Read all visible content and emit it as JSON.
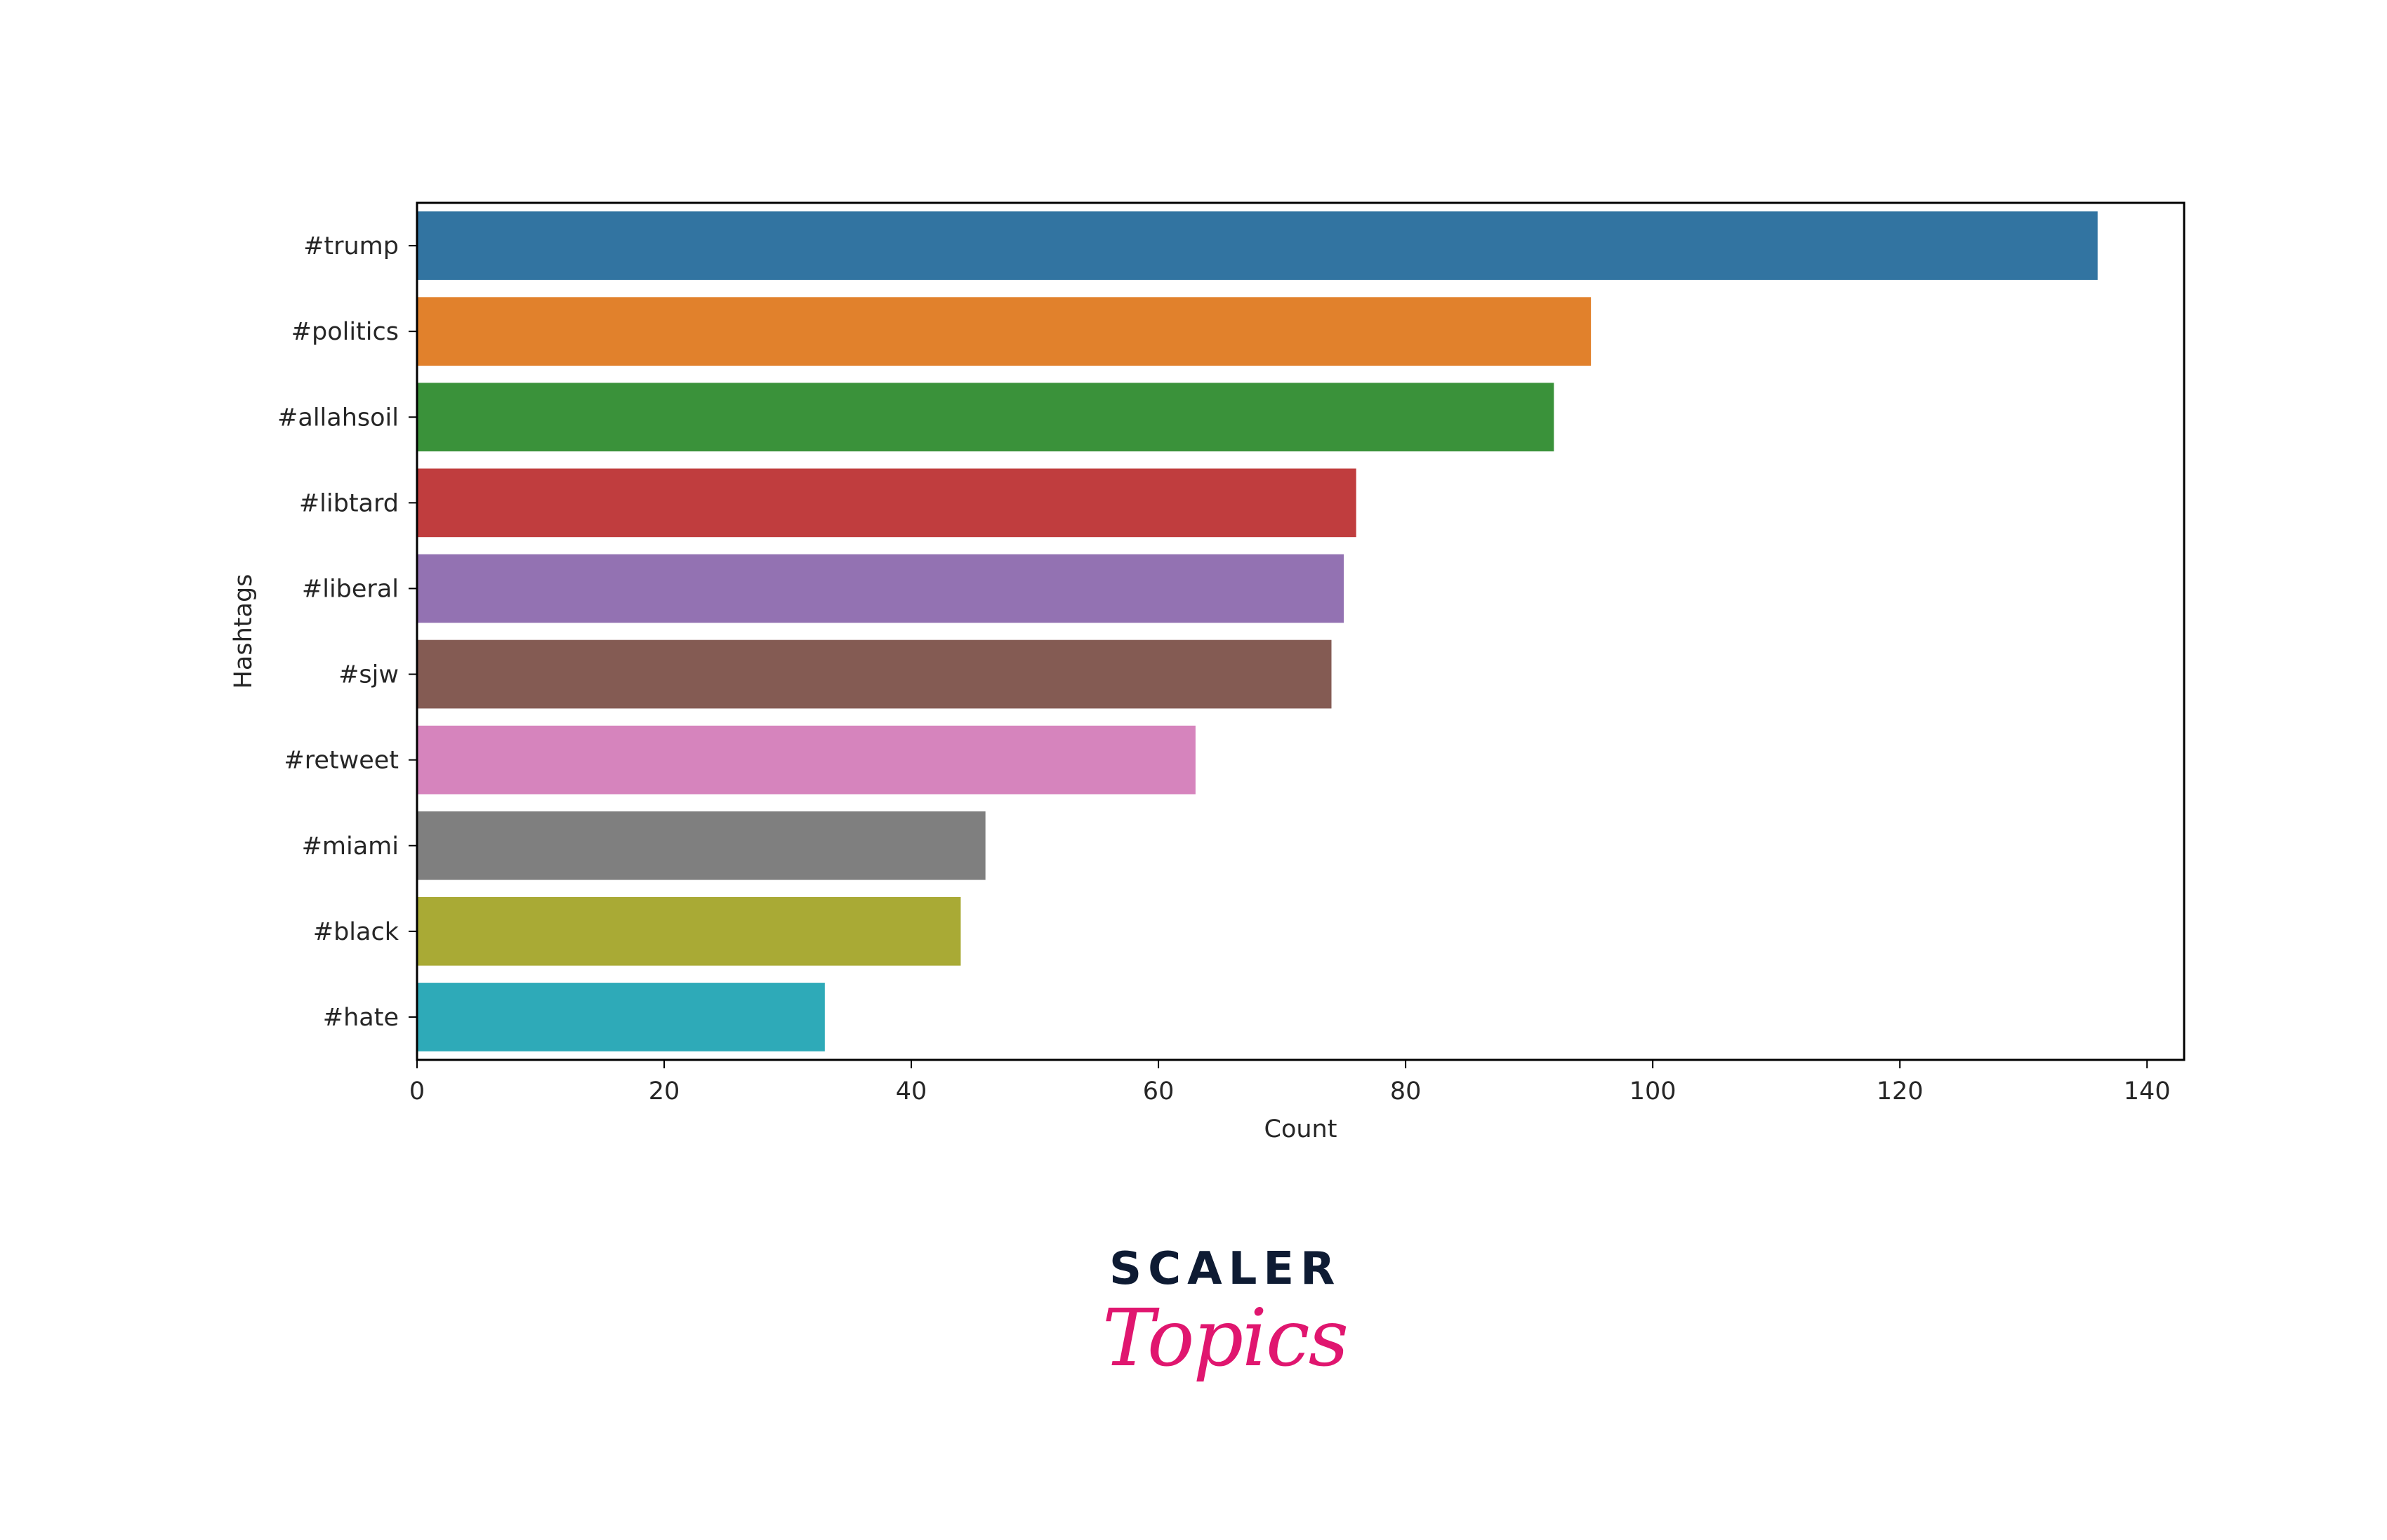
{
  "chart_data": {
    "type": "bar",
    "orientation": "horizontal",
    "categories": [
      "#trump",
      "#politics",
      "#allahsoil",
      "#libtard",
      "#liberal",
      "#sjw",
      "#retweet",
      "#miami",
      "#black",
      "#hate"
    ],
    "values": [
      136,
      95,
      92,
      76,
      75,
      74,
      63,
      46,
      44,
      33
    ],
    "colors": [
      "#3274a1",
      "#e1812c",
      "#3a923a",
      "#c03d3e",
      "#9372b2",
      "#845b53",
      "#d684bd",
      "#7f7f7f",
      "#a9aa35",
      "#2eaab8"
    ],
    "xlabel": "Count",
    "ylabel": "Hashtags",
    "xlim": [
      0,
      143
    ],
    "xticks": [
      0,
      20,
      40,
      60,
      80,
      100,
      120,
      140
    ],
    "grid": false,
    "legend": "none"
  },
  "logo": {
    "line1": "SCALER",
    "line2": "Topics"
  }
}
